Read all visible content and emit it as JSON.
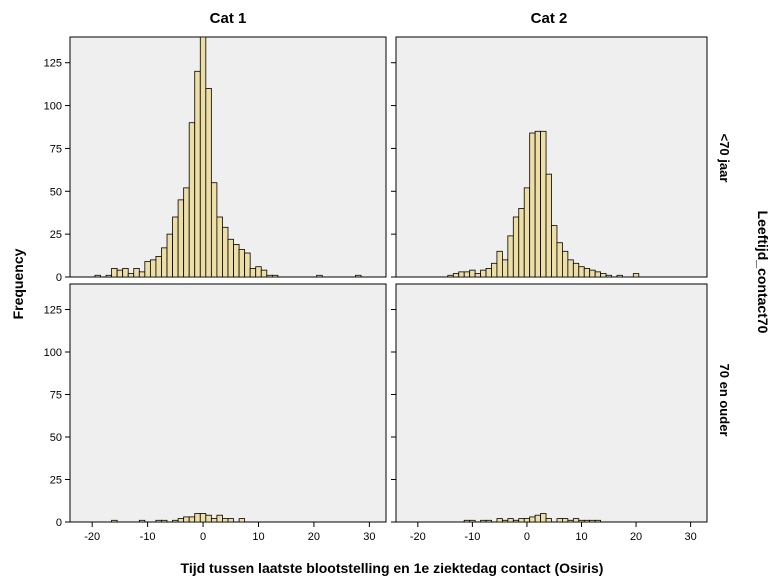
{
  "chart_data": {
    "type": "bar",
    "subtype": "histogram-panel-grid",
    "title": "",
    "xlabel": "Tijd tussen laatste blootstelling en 1e ziektedag contact (Osiris)",
    "ylabel": "Frequency",
    "row_variable": "Leeftijd_contact70",
    "columns": [
      "Cat 1",
      "Cat 2"
    ],
    "rows": [
      "<70 jaar",
      "70 en ouder"
    ],
    "xlim": [
      -24,
      33
    ],
    "ylim": [
      0,
      140
    ],
    "x_ticks": [
      -20,
      -10,
      0,
      10,
      20,
      30
    ],
    "y_ticks": [
      0,
      25,
      50,
      75,
      100,
      125
    ],
    "bin_width": 1,
    "bar_color": "#ecdea5",
    "panel_background": "#efefef",
    "grid": false,
    "panels": [
      {
        "column": "Cat 1",
        "row": "<70 jaar",
        "bins": [
          [
            -19,
            1
          ],
          [
            -17,
            1
          ],
          [
            -16,
            5
          ],
          [
            -15,
            4
          ],
          [
            -14,
            5
          ],
          [
            -13,
            2
          ],
          [
            -12,
            5
          ],
          [
            -11,
            3
          ],
          [
            -10,
            9
          ],
          [
            -9,
            10
          ],
          [
            -8,
            12
          ],
          [
            -7,
            17
          ],
          [
            -6,
            25
          ],
          [
            -5,
            35
          ],
          [
            -4,
            45
          ],
          [
            -3,
            52
          ],
          [
            -2,
            90
          ],
          [
            -1,
            120
          ],
          [
            0,
            140
          ],
          [
            1,
            110
          ],
          [
            2,
            55
          ],
          [
            3,
            35
          ],
          [
            4,
            29
          ],
          [
            5,
            22
          ],
          [
            6,
            19
          ],
          [
            7,
            16
          ],
          [
            8,
            14
          ],
          [
            9,
            5
          ],
          [
            10,
            6
          ],
          [
            11,
            4
          ],
          [
            12,
            1
          ],
          [
            13,
            1
          ],
          [
            21,
            1
          ],
          [
            28,
            1
          ]
        ]
      },
      {
        "column": "Cat 2",
        "row": "<70 jaar",
        "bins": [
          [
            -14,
            1
          ],
          [
            -13,
            2
          ],
          [
            -12,
            3
          ],
          [
            -11,
            3
          ],
          [
            -10,
            4
          ],
          [
            -9,
            2
          ],
          [
            -8,
            4
          ],
          [
            -7,
            5
          ],
          [
            -6,
            8
          ],
          [
            -5,
            15
          ],
          [
            -4,
            10
          ],
          [
            -3,
            24
          ],
          [
            -2,
            35
          ],
          [
            -1,
            40
          ],
          [
            0,
            52
          ],
          [
            1,
            84
          ],
          [
            2,
            85
          ],
          [
            3,
            85
          ],
          [
            4,
            60
          ],
          [
            5,
            30
          ],
          [
            6,
            20
          ],
          [
            7,
            15
          ],
          [
            8,
            10
          ],
          [
            9,
            8
          ],
          [
            10,
            6
          ],
          [
            11,
            5
          ],
          [
            12,
            4
          ],
          [
            13,
            3
          ],
          [
            14,
            2
          ],
          [
            15,
            1
          ],
          [
            17,
            1
          ],
          [
            20,
            2
          ]
        ]
      },
      {
        "column": "Cat 1",
        "row": "70 en ouder",
        "bins": [
          [
            -16,
            1
          ],
          [
            -11,
            1
          ],
          [
            -8,
            1
          ],
          [
            -7,
            1
          ],
          [
            -5,
            1
          ],
          [
            -4,
            2
          ],
          [
            -3,
            3
          ],
          [
            -2,
            3
          ],
          [
            -1,
            5
          ],
          [
            0,
            5
          ],
          [
            1,
            4
          ],
          [
            2,
            2
          ],
          [
            3,
            4
          ],
          [
            4,
            2
          ],
          [
            5,
            2
          ],
          [
            7,
            2
          ]
        ]
      },
      {
        "column": "Cat 2",
        "row": "70 en ouder",
        "bins": [
          [
            -11,
            1
          ],
          [
            -10,
            1
          ],
          [
            -8,
            1
          ],
          [
            -7,
            1
          ],
          [
            -5,
            2
          ],
          [
            -4,
            1
          ],
          [
            -3,
            2
          ],
          [
            -2,
            1
          ],
          [
            -1,
            2
          ],
          [
            0,
            2
          ],
          [
            1,
            3
          ],
          [
            2,
            4
          ],
          [
            3,
            5
          ],
          [
            4,
            2
          ],
          [
            6,
            2
          ],
          [
            7,
            2
          ],
          [
            8,
            1
          ],
          [
            9,
            2
          ],
          [
            10,
            1
          ],
          [
            11,
            1
          ],
          [
            12,
            1
          ],
          [
            13,
            1
          ]
        ]
      }
    ]
  }
}
